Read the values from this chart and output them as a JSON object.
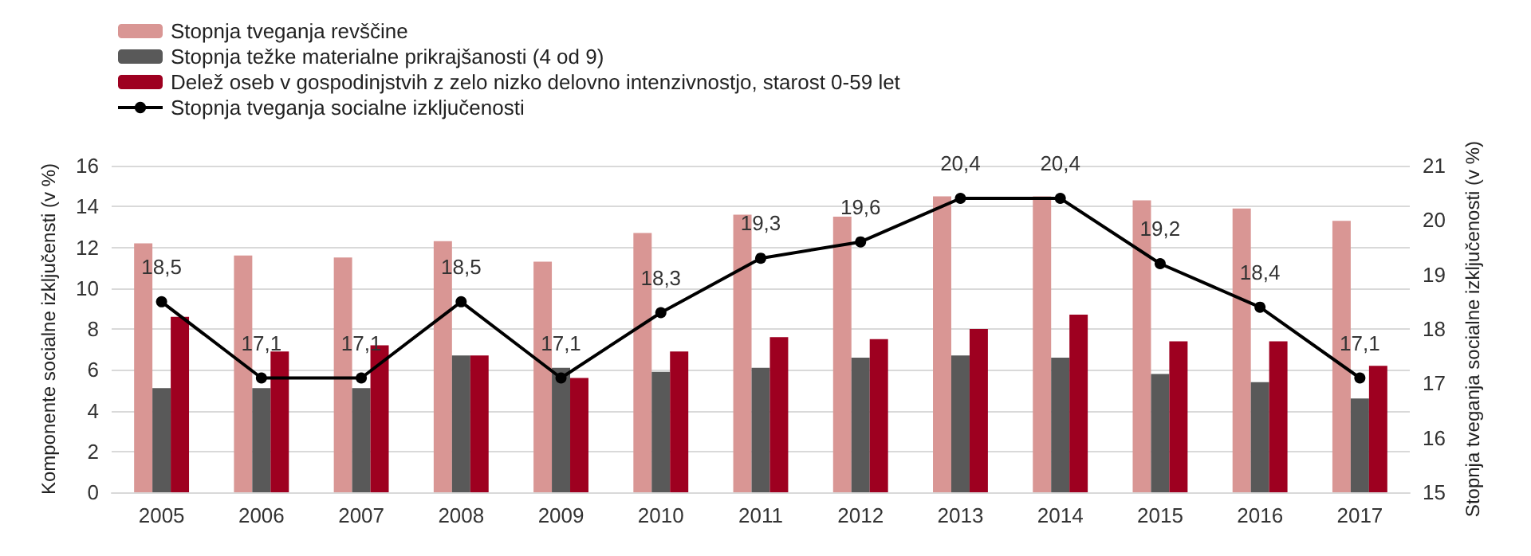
{
  "chart_data": {
    "type": "bar",
    "ylabel": "Komponente socialne izključensti (v %)",
    "y2label": "Stopnja tveganja socialne izključenosti (v %)",
    "categories": [
      "2005",
      "2006",
      "2007",
      "2008",
      "2009",
      "2010",
      "2011",
      "2012",
      "2013",
      "2014",
      "2015",
      "2016",
      "2017"
    ],
    "series": [
      {
        "name": "Stopnja tveganja revščine",
        "color": "#d99694",
        "values": [
          12.2,
          11.6,
          11.5,
          12.3,
          11.3,
          12.7,
          13.6,
          13.5,
          14.5,
          14.5,
          14.3,
          13.9,
          13.3
        ]
      },
      {
        "name": "Stopnja težke materialne prikrajšanosti (4 od 9)",
        "color": "#595959",
        "values": [
          5.1,
          5.1,
          5.1,
          6.7,
          6.1,
          5.9,
          6.1,
          6.6,
          6.7,
          6.6,
          5.8,
          5.4,
          4.6
        ]
      },
      {
        "name": "Delež oseb v gospodinjstvih z zelo nizko delovno intenzivnostjo, starost 0-59 let",
        "color": "#9e0020",
        "values": [
          8.6,
          6.9,
          7.2,
          6.7,
          5.6,
          6.9,
          7.6,
          7.5,
          8.0,
          8.7,
          7.4,
          7.4,
          6.2
        ]
      },
      {
        "name": "Stopnja tveganja socialne izključenosti",
        "type": "line",
        "axis": "y2",
        "color": "#000000",
        "marker": "circle",
        "value_labels": [
          "18,5",
          "17,1",
          "17,1",
          "18,5",
          "17,1",
          "18,3",
          "19,3",
          "19,6",
          "20,4",
          "20,4",
          "19,2",
          "18,4",
          "17,1"
        ],
        "values": [
          18.5,
          17.1,
          17.1,
          18.5,
          17.1,
          18.3,
          19.3,
          19.6,
          20.4,
          20.4,
          19.2,
          18.4,
          17.1
        ]
      }
    ],
    "ylim": [
      0,
      16
    ],
    "yticks": [
      0,
      2,
      4,
      6,
      8,
      10,
      12,
      14,
      16
    ],
    "y2lim": [
      15,
      21
    ],
    "y2ticks": [
      15,
      16,
      17,
      18,
      19,
      20,
      21
    ],
    "grid": "y",
    "legend": "top left"
  }
}
